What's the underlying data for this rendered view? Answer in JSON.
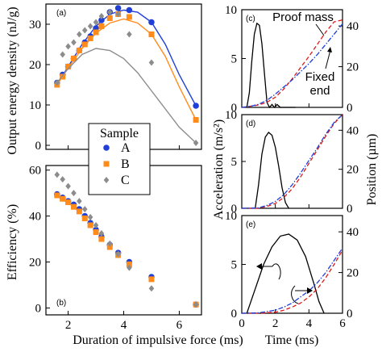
{
  "chart_data": [
    {
      "id": "a",
      "panel_label": "(a)",
      "type": "scatter",
      "xlim": [
        1.2,
        6.8
      ],
      "ylim": [
        -1,
        35
      ],
      "xticks": [],
      "yticks": [
        0,
        10,
        20,
        30
      ],
      "ylabel": "Output energy density (nJ/g)",
      "series": [
        {
          "name": "A",
          "color": "#1f3fd6",
          "marker": "circle",
          "x": [
            1.6,
            1.8,
            2.0,
            2.2,
            2.4,
            2.6,
            2.8,
            3.0,
            3.2,
            3.5,
            3.8,
            4.2,
            5.0,
            6.6
          ],
          "y": [
            15.5,
            17.5,
            19.5,
            21.5,
            23.5,
            25.5,
            27,
            29,
            31,
            33,
            34,
            33.5,
            30.5,
            9.8
          ],
          "fit": {
            "x": [
              1.6,
              2.0,
              2.5,
              3.0,
              3.5,
              4.0,
              4.5,
              5.0,
              5.5,
              6.0,
              6.6
            ],
            "y": [
              15,
              19.5,
              25,
              29.5,
              32.5,
              33.5,
              33,
              30.5,
              25,
              17.5,
              9.8
            ]
          }
        },
        {
          "name": "B",
          "color": "#ff8c1a",
          "marker": "square",
          "x": [
            1.6,
            1.8,
            2.0,
            2.2,
            2.4,
            2.6,
            2.8,
            3.0,
            3.2,
            3.5,
            3.8,
            4.2,
            5.0,
            6.6
          ],
          "y": [
            15,
            17,
            19.5,
            21.5,
            23.5,
            25,
            26.5,
            28,
            29.5,
            31.5,
            32.5,
            31.8,
            27.5,
            6.3
          ],
          "fit": {
            "x": [
              1.6,
              2.0,
              2.5,
              3.0,
              3.5,
              4.0,
              4.5,
              5.0,
              5.5,
              6.0,
              6.6
            ],
            "y": [
              15,
              19.2,
              24,
              27.8,
              30.3,
              31.3,
              30.3,
              27.5,
              22,
              14.5,
              6.3
            ]
          }
        },
        {
          "name": "C",
          "color": "#8c8c8c",
          "marker": "diamond",
          "x": [
            1.6,
            1.8,
            2.0,
            2.2,
            2.4,
            2.6,
            2.8,
            3.0,
            3.2,
            3.5,
            3.8,
            4.2,
            5.0,
            6.6
          ],
          "y": [
            15.5,
            22.5,
            24.5,
            25.5,
            27.5,
            28.5,
            29.5,
            30.5,
            32,
            33,
            32.5,
            27.5,
            20.5,
            0.6
          ],
          "fit": {
            "x": [
              1.6,
              2.0,
              2.5,
              3.0,
              3.5,
              4.0,
              4.5,
              5.0,
              5.5,
              6.0,
              6.6
            ],
            "y": [
              15.5,
              19,
              22.5,
              24,
              23.5,
              21.5,
              18,
              13.5,
              9,
              4.5,
              0.6
            ]
          }
        }
      ]
    },
    {
      "id": "b",
      "panel_label": "(b)",
      "type": "scatter",
      "xlim": [
        1.2,
        6.8
      ],
      "ylim": [
        -3,
        62
      ],
      "xticks": [
        2,
        4,
        6
      ],
      "yticks": [
        0,
        20,
        40,
        60
      ],
      "xlabel": "Duration of impulsive force (ms)",
      "ylabel": "Efficiency (%)",
      "series": [
        {
          "name": "A",
          "color": "#1f3fd6",
          "marker": "circle",
          "x": [
            1.6,
            1.8,
            2.0,
            2.2,
            2.4,
            2.6,
            2.8,
            3.0,
            3.2,
            3.5,
            3.8,
            4.2,
            5.0,
            6.6
          ],
          "y": [
            49.5,
            48,
            46.5,
            45,
            43,
            40,
            37,
            34,
            31,
            27.5,
            24,
            20,
            13.5,
            1.5
          ]
        },
        {
          "name": "B",
          "color": "#ff8c1a",
          "marker": "square",
          "x": [
            1.6,
            1.8,
            2.0,
            2.2,
            2.4,
            2.6,
            2.8,
            3.0,
            3.2,
            3.5,
            3.8,
            4.2,
            5.0,
            6.6
          ],
          "y": [
            49,
            47.5,
            46,
            44,
            42,
            39,
            36,
            33,
            30,
            26.5,
            23,
            19,
            12.5,
            1.5
          ]
        },
        {
          "name": "C",
          "color": "#8c8c8c",
          "marker": "diamond",
          "x": [
            1.6,
            1.8,
            2.0,
            2.2,
            2.4,
            2.6,
            2.8,
            3.0,
            3.2,
            3.5,
            3.8,
            4.2,
            5.0,
            6.6
          ],
          "y": [
            58,
            56,
            53,
            50,
            46.5,
            43,
            39.5,
            36,
            32.5,
            28,
            23.5,
            17.5,
            8.5,
            1.5
          ]
        }
      ]
    },
    {
      "id": "c",
      "panel_label": "(c)",
      "type": "line",
      "xlim": [
        0,
        6
      ],
      "xticks": [
        0,
        2,
        4,
        6
      ],
      "ylim": [
        0,
        10
      ],
      "yticks": [
        0,
        5,
        10
      ],
      "y2lim": [
        0,
        48
      ],
      "y2ticks": [
        0,
        20,
        40
      ],
      "annotations": [
        "Proof mass",
        "Fixed",
        "end"
      ],
      "series": [
        {
          "role": "acceleration",
          "axis": "left",
          "color": "#000000",
          "dash": "solid",
          "x": [
            0.3,
            0.45,
            0.6,
            0.75,
            0.9,
            1.05,
            1.2,
            1.35,
            1.5,
            1.65,
            1.8,
            1.95,
            2.1,
            2.3,
            2.6,
            2.9,
            3.2
          ],
          "y": [
            0,
            1.5,
            4.8,
            7.5,
            8.6,
            8.4,
            6.5,
            3.5,
            0.5,
            0,
            0.3,
            0,
            0.3,
            0,
            0,
            0,
            0
          ]
        },
        {
          "role": "position",
          "axis": "right",
          "color": "#e01818",
          "dash": "dashed",
          "x": [
            0,
            0.5,
            1.0,
            1.5,
            2.0,
            2.5,
            3.0,
            3.5,
            4.0,
            4.5,
            5.0,
            5.5,
            6.0
          ],
          "y": [
            0,
            0.5,
            1.2,
            2.5,
            5,
            9,
            14,
            19.5,
            25,
            31,
            37,
            42,
            43
          ]
        },
        {
          "role": "position",
          "axis": "right",
          "color": "#1f3fd6",
          "dash": "dashdot",
          "x": [
            0,
            0.5,
            1.0,
            1.5,
            2.0,
            2.5,
            3.0,
            3.5,
            4.0,
            4.5,
            5.0,
            5.5,
            6.0
          ],
          "y": [
            0,
            0.5,
            1.5,
            3.5,
            6.5,
            10,
            13.5,
            17.5,
            21.5,
            26,
            31,
            36,
            41
          ]
        }
      ]
    },
    {
      "id": "d",
      "panel_label": "(d)",
      "type": "line",
      "xlim": [
        0,
        6
      ],
      "xticks": [
        0,
        2,
        4,
        6
      ],
      "ylim": [
        0,
        10
      ],
      "yticks": [
        0,
        5,
        10
      ],
      "y2lim": [
        0,
        48
      ],
      "y2ticks": [
        0,
        20,
        40
      ],
      "series": [
        {
          "role": "acceleration",
          "axis": "left",
          "color": "#000000",
          "dash": "solid",
          "x": [
            0.8,
            1.0,
            1.2,
            1.4,
            1.6,
            1.8,
            2.0,
            2.2,
            2.4,
            2.6,
            2.8
          ],
          "y": [
            0,
            2.5,
            5.8,
            7.6,
            8.1,
            7.8,
            6.5,
            4.5,
            2.2,
            0.6,
            0
          ]
        },
        {
          "role": "position",
          "axis": "right",
          "color": "#e01818",
          "dash": "dashed",
          "x": [
            0,
            1.0,
            1.5,
            2.0,
            2.5,
            3.0,
            3.5,
            4.0,
            4.5,
            5.0,
            5.5,
            6.0
          ],
          "y": [
            0,
            0,
            1,
            2.5,
            5.5,
            10,
            16,
            23,
            30,
            37,
            43.5,
            48
          ]
        },
        {
          "role": "position",
          "axis": "right",
          "color": "#1f3fd6",
          "dash": "dashdot",
          "x": [
            0,
            1.0,
            1.5,
            2.0,
            2.5,
            3.0,
            3.5,
            4.0,
            4.5,
            5.0,
            5.5,
            6.0
          ],
          "y": [
            0,
            0.2,
            1.5,
            3.5,
            7,
            12,
            18,
            24.5,
            31,
            38,
            44,
            48
          ]
        }
      ]
    },
    {
      "id": "e",
      "panel_label": "(e)",
      "type": "line",
      "xlim": [
        0,
        6
      ],
      "xticks": [
        0,
        2,
        4,
        6
      ],
      "ylim": [
        0,
        10
      ],
      "yticks": [
        0,
        5,
        10
      ],
      "y2lim": [
        0,
        48
      ],
      "y2ticks": [
        0,
        20,
        40
      ],
      "xlabel": "Time (ms)",
      "ylabel_left": "Acceleration (m/s²)",
      "ylabel_right": "Position (µm)",
      "series": [
        {
          "role": "acceleration",
          "axis": "left",
          "color": "#000000",
          "dash": "solid",
          "x": [
            0.3,
            0.8,
            1.3,
            1.8,
            2.3,
            2.8,
            3.3,
            3.8,
            4.3,
            4.6,
            4.9
          ],
          "y": [
            0,
            2.5,
            5,
            6.8,
            7.9,
            8.1,
            7.5,
            5.8,
            3,
            1.2,
            0
          ]
        },
        {
          "role": "position",
          "axis": "right",
          "color": "#e01818",
          "dash": "dashed",
          "x": [
            0,
            1.0,
            2.0,
            2.5,
            3.0,
            3.5,
            4.0,
            4.5,
            5.0,
            5.5,
            6.0
          ],
          "y": [
            0,
            0,
            0.5,
            1.5,
            3,
            5,
            8,
            12,
            17.5,
            24,
            31
          ]
        },
        {
          "role": "position",
          "axis": "right",
          "color": "#1f3fd6",
          "dash": "dashdot",
          "x": [
            0,
            1.0,
            2.0,
            2.5,
            3.0,
            3.5,
            4.0,
            4.5,
            5.0,
            5.5,
            6.0
          ],
          "y": [
            0,
            0.2,
            1.5,
            3,
            5,
            8,
            11,
            15,
            20,
            26,
            32
          ]
        }
      ]
    }
  ],
  "legend": {
    "title": "Sample",
    "entries": [
      {
        "label": "A",
        "color": "#1f3fd6",
        "marker": "circle"
      },
      {
        "label": "B",
        "color": "#ff8c1a",
        "marker": "square"
      },
      {
        "label": "C",
        "color": "#8c8c8c",
        "marker": "diamond"
      }
    ]
  }
}
